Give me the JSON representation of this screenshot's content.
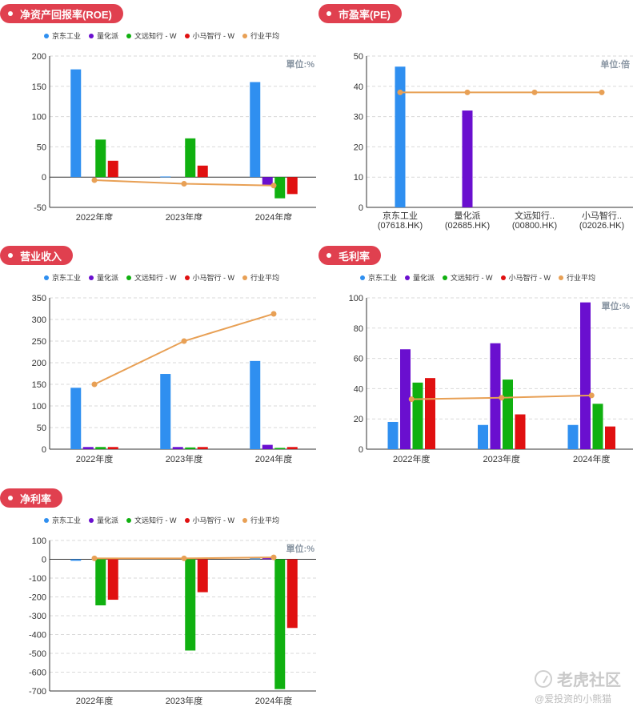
{
  "colors": {
    "badge": "#e0404f",
    "series": [
      "#2f8ff0",
      "#6a0fcf",
      "#10b010",
      "#e01010"
    ],
    "avg": "#e8a055",
    "axis": "#333333",
    "grid": "#d9d9d9",
    "unit_text": "#8a96a3"
  },
  "legend_labels": [
    "京东工业",
    "量化派",
    "文远知行 - W",
    "小马智行 - W",
    "行业平均"
  ],
  "panels": [
    {
      "title": "净资产回报率(ROE)",
      "show_legend": true,
      "chart_data": {
        "type": "bar",
        "categories": [
          "2022年度",
          "2023年度",
          "2024年度"
        ],
        "series": [
          {
            "name": "京东工业",
            "values": [
              178,
              1,
              157
            ]
          },
          {
            "name": "量化派",
            "values": [
              0,
              0,
              -13
            ]
          },
          {
            "name": "文远知行 - W",
            "values": [
              62,
              64,
              -35
            ]
          },
          {
            "name": "小马智行 - W",
            "values": [
              27,
              19,
              -28
            ]
          }
        ],
        "line": {
          "name": "行业平均",
          "values": [
            -5,
            -11,
            -14
          ]
        },
        "ylim": [
          -50,
          200
        ],
        "yticks": [
          -50,
          0,
          50,
          100,
          150,
          200
        ],
        "unit": "單位:%"
      }
    },
    {
      "title": "市盈率(PE)",
      "show_legend": false,
      "chart_data": {
        "type": "bar",
        "categories": [
          "京东工业\n(07618.HK)",
          "量化派\n(02685.HK)",
          "文远知行..\n(00800.HK)",
          "小马智行..\n(02026.HK)"
        ],
        "bars": [
          {
            "value": 46.5,
            "color": "#2f8ff0"
          },
          {
            "value": 32,
            "color": "#6a0fcf"
          },
          {
            "value": 0,
            "color": "#10b010"
          },
          {
            "value": 0,
            "color": "#e01010"
          }
        ],
        "line": {
          "name": "行业平均",
          "values": [
            38,
            38,
            38,
            38
          ]
        },
        "ylim": [
          0,
          50
        ],
        "yticks": [
          0,
          10,
          20,
          30,
          40,
          50
        ],
        "unit": "单位:倍"
      }
    },
    {
      "title": "营业收入",
      "show_legend": true,
      "chart_data": {
        "type": "bar",
        "categories": [
          "2022年度",
          "2023年度",
          "2024年度"
        ],
        "series": [
          {
            "name": "京东工业",
            "values": [
              142,
              174,
              204
            ]
          },
          {
            "name": "量化派",
            "values": [
              5,
              5,
              10
            ]
          },
          {
            "name": "文远知行 - W",
            "values": [
              5,
              4,
              3
            ]
          },
          {
            "name": "小马智行 - W",
            "values": [
              5,
              5,
              5
            ]
          }
        ],
        "line": {
          "name": "行业平均",
          "values": [
            150,
            250,
            313
          ]
        },
        "ylim": [
          0,
          350
        ],
        "yticks": [
          0,
          50,
          100,
          150,
          200,
          250,
          300,
          350
        ],
        "unit": ""
      }
    },
    {
      "title": "毛利率",
      "show_legend": true,
      "chart_data": {
        "type": "bar",
        "categories": [
          "2022年度",
          "2023年度",
          "2024年度"
        ],
        "series": [
          {
            "name": "京东工业",
            "values": [
              18,
              16,
              16
            ]
          },
          {
            "name": "量化派",
            "values": [
              66,
              70,
              97
            ]
          },
          {
            "name": "文远知行 - W",
            "values": [
              44,
              46,
              30
            ]
          },
          {
            "name": "小马智行 - W",
            "values": [
              47,
              23,
              15
            ]
          }
        ],
        "line": {
          "name": "行业平均",
          "values": [
            33,
            34,
            35.5
          ]
        },
        "ylim": [
          0,
          100
        ],
        "yticks": [
          0,
          20,
          40,
          60,
          80,
          100
        ],
        "unit": "單位:%"
      }
    },
    {
      "title": "净利率",
      "show_legend": true,
      "chart_data": {
        "type": "bar",
        "categories": [
          "2022年度",
          "2023年度",
          "2024年度"
        ],
        "series": [
          {
            "name": "京东工业",
            "values": [
              -8,
              0,
              5
            ]
          },
          {
            "name": "量化派",
            "values": [
              0,
              0,
              12
            ]
          },
          {
            "name": "文远知行 - W",
            "values": [
              -245,
              -485,
              -690
            ]
          },
          {
            "name": "小马智行 - W",
            "values": [
              -215,
              -175,
              -365
            ]
          }
        ],
        "line": {
          "name": "行业平均",
          "values": [
            5,
            5,
            10
          ]
        },
        "ylim": [
          -700,
          100
        ],
        "yticks": [
          -700,
          -600,
          -500,
          -400,
          -300,
          -200,
          -100,
          0,
          100
        ],
        "unit": "單位:%"
      }
    }
  ],
  "watermark": {
    "brand": "老虎社区",
    "author": "@爱投资的小熊猫"
  }
}
